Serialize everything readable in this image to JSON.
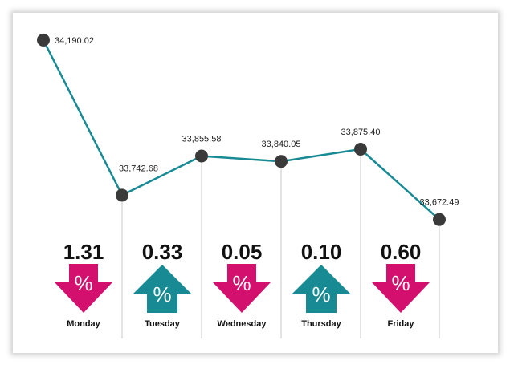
{
  "chart_data": {
    "type": "line",
    "title": "",
    "xlabel": "",
    "ylabel": "",
    "ylim": [
      33600,
      34250
    ],
    "grid": false,
    "categories": [
      "Monday",
      "Tuesday",
      "Wednesday",
      "Thursday",
      "Friday"
    ],
    "start_point": {
      "value": 34190.02,
      "label": "34,190.02"
    },
    "series": [
      {
        "values": [
          33742.68,
          33855.58,
          33840.05,
          33875.4,
          33672.49
        ],
        "labels": [
          "33,742.68",
          "33,855.58",
          "33,840.05",
          "33,875.40",
          "33,672.49"
        ]
      }
    ],
    "daily_change": [
      {
        "day": "Monday",
        "percent": "1.31",
        "direction": "down"
      },
      {
        "day": "Tuesday",
        "percent": "0.33",
        "direction": "up"
      },
      {
        "day": "Wednesday",
        "percent": "0.05",
        "direction": "down"
      },
      {
        "day": "Thursday",
        "percent": "0.10",
        "direction": "up"
      },
      {
        "day": "Friday",
        "percent": "0.60",
        "direction": "down"
      }
    ],
    "percent_symbol": "%",
    "colors": {
      "line": "#178a94",
      "marker": "#3a3a3a",
      "up": "#178a94",
      "down": "#d4106e",
      "divider": "#c8c8c8"
    }
  }
}
